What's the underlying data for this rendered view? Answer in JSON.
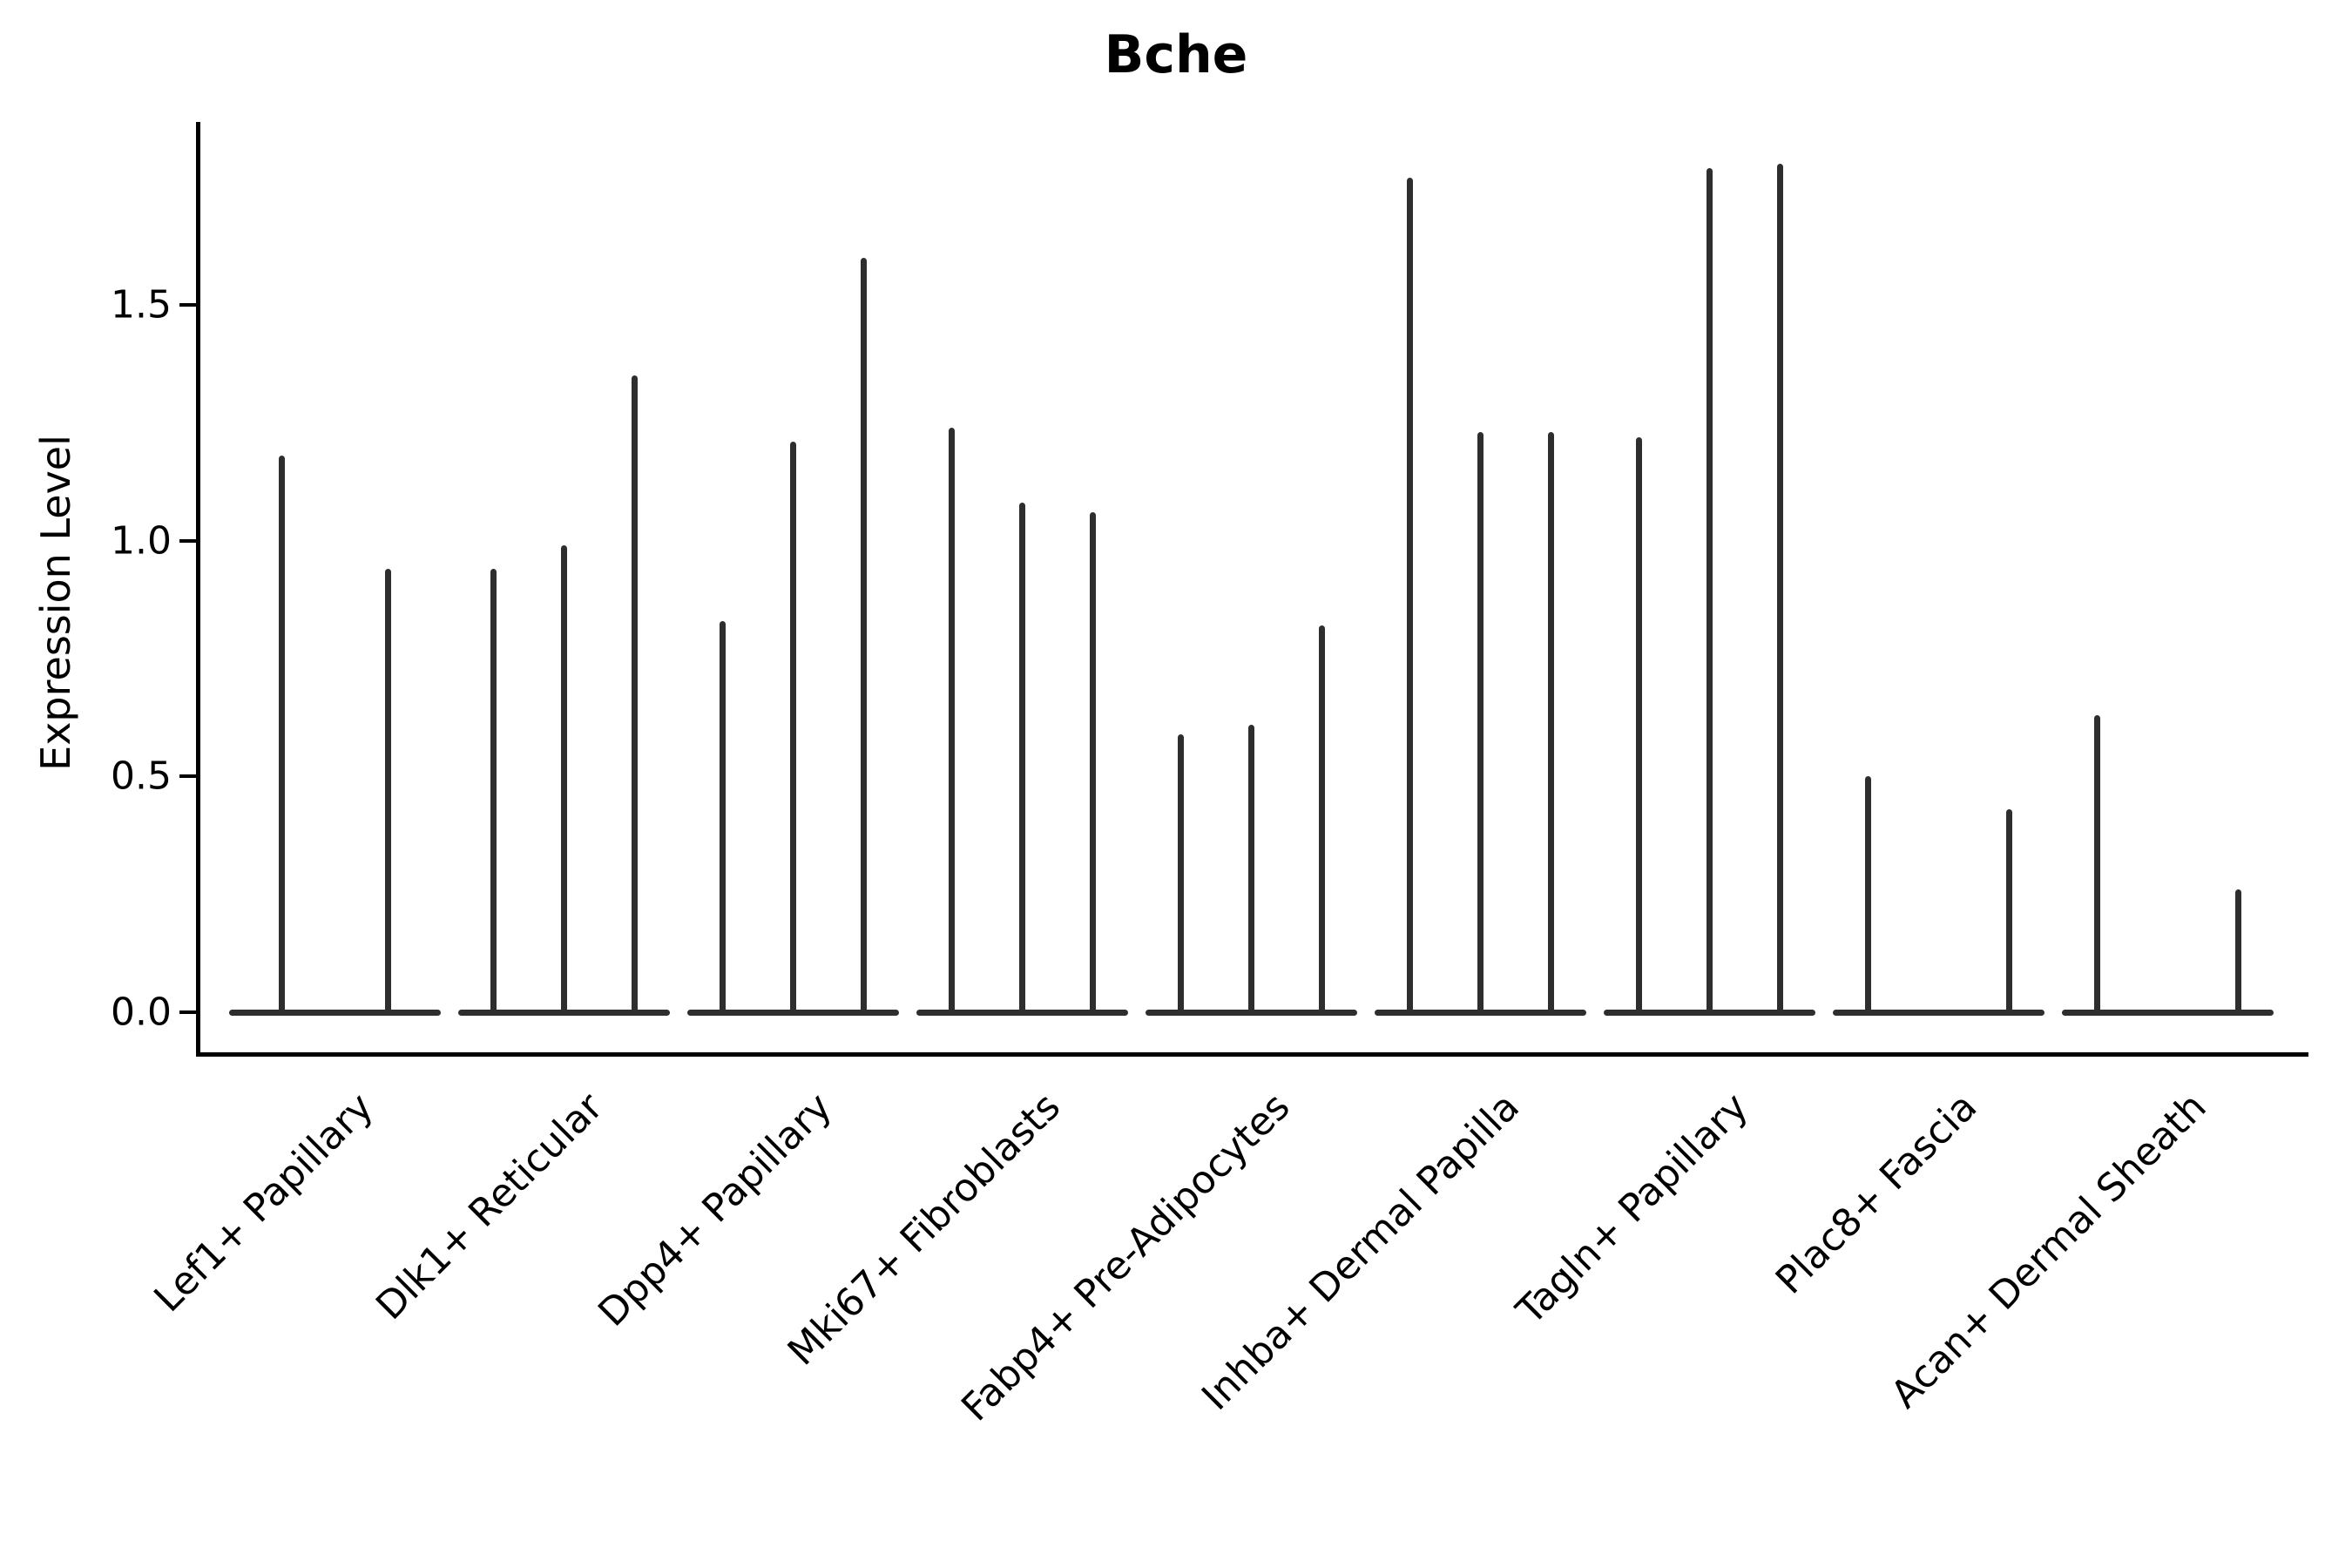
{
  "title": "Bche",
  "chart_data": {
    "type": "violin",
    "title": "Bche",
    "xlabel": "",
    "ylabel": "Expression Level",
    "ylim": [
      0,
      1.89
    ],
    "grid": false,
    "legend": "none",
    "yticks": [
      {
        "value": 0.0,
        "label": "0.0"
      },
      {
        "value": 0.5,
        "label": "0.5"
      },
      {
        "value": 1.0,
        "label": "1.0"
      },
      {
        "value": 1.5,
        "label": "1.5"
      }
    ],
    "categories": [
      "Lef1+ Papillary",
      "Dlk1+ Reticular",
      "Dpp4+ Papillary",
      "Mki67+ Fibroblasts",
      "Fabp4+ Pre-Adipocytes",
      "Inhba+ Dermal Papilla",
      "Tagln+ Papillary",
      "Plac8+ Fascia",
      "Acan+ Dermal Sheath"
    ],
    "groups": [
      {
        "label": "Lef1+ Papillary",
        "n_slots": 2,
        "violins": [
          {
            "slot": 0,
            "max": 1.18
          },
          {
            "slot": 1,
            "max": 0.94
          }
        ]
      },
      {
        "label": "Dlk1+ Reticular",
        "n_slots": 3,
        "violins": [
          {
            "slot": 0,
            "max": 0.94
          },
          {
            "slot": 1,
            "max": 0.99
          },
          {
            "slot": 2,
            "max": 1.35
          }
        ]
      },
      {
        "label": "Dpp4+ Papillary",
        "n_slots": 3,
        "violins": [
          {
            "slot": 0,
            "max": 0.83
          },
          {
            "slot": 1,
            "max": 1.21
          },
          {
            "slot": 2,
            "max": 1.6
          }
        ]
      },
      {
        "label": "Mki67+ Fibroblasts",
        "n_slots": 3,
        "violins": [
          {
            "slot": 0,
            "max": 1.24
          },
          {
            "slot": 1,
            "max": 1.08
          },
          {
            "slot": 2,
            "max": 1.06
          }
        ]
      },
      {
        "label": "Fabp4+ Pre-Adipocytes",
        "n_slots": 3,
        "violins": [
          {
            "slot": 0,
            "max": 0.59
          },
          {
            "slot": 1,
            "max": 0.61
          },
          {
            "slot": 2,
            "max": 0.82
          }
        ]
      },
      {
        "label": "Inhba+ Dermal Papilla",
        "n_slots": 3,
        "violins": [
          {
            "slot": 0,
            "max": 1.77
          },
          {
            "slot": 1,
            "max": 1.23
          },
          {
            "slot": 2,
            "max": 1.23
          }
        ]
      },
      {
        "label": "Tagln+ Papillary",
        "n_slots": 3,
        "violins": [
          {
            "slot": 0,
            "max": 1.22
          },
          {
            "slot": 1,
            "max": 1.79
          },
          {
            "slot": 2,
            "max": 1.8
          }
        ]
      },
      {
        "label": "Plac8+ Fascia",
        "n_slots": 3,
        "violins": [
          {
            "slot": 0,
            "max": 0.5
          },
          {
            "slot": 2,
            "max": 0.43
          }
        ]
      },
      {
        "label": "Acan+ Dermal Sheath",
        "n_slots": 3,
        "violins": [
          {
            "slot": 0,
            "max": 0.63
          },
          {
            "slot": 2,
            "max": 0.26
          }
        ]
      }
    ],
    "colors": {
      "violin": "#2e2e2e",
      "axis": "#000000",
      "text": "#000000",
      "background": "#ffffff"
    }
  }
}
